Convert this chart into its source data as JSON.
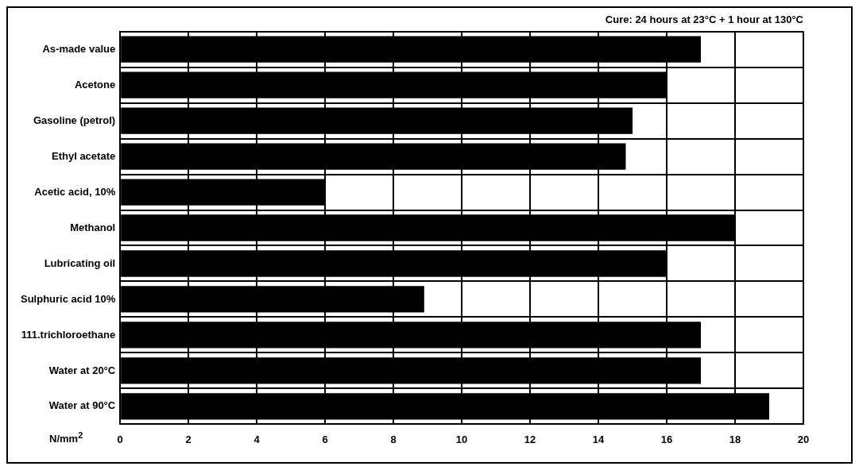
{
  "chart_data": {
    "type": "bar",
    "orientation": "horizontal",
    "title": "Cure: 24 hours at 23°C + 1 hour at 130°C",
    "xlabel": "N/mm$^{2}$",
    "categories": [
      "As-made value",
      "Acetone",
      "Gasoline (petrol)",
      "Ethyl acetate",
      "Acetic acid, 10%",
      "Methanol",
      "Lubricating oil",
      "Sulphuric acid 10%",
      "111.trichloroethane",
      "Water at 20°C",
      "Water at 90°C"
    ],
    "values": [
      17,
      16,
      15,
      14.8,
      6,
      18,
      16,
      8.9,
      17,
      17,
      19
    ],
    "color": "#000000",
    "xlim": [
      0,
      20
    ],
    "xticks": [
      0,
      2,
      4,
      6,
      8,
      10,
      12,
      14,
      16,
      18,
      20
    ],
    "grid": true,
    "legend": false
  }
}
